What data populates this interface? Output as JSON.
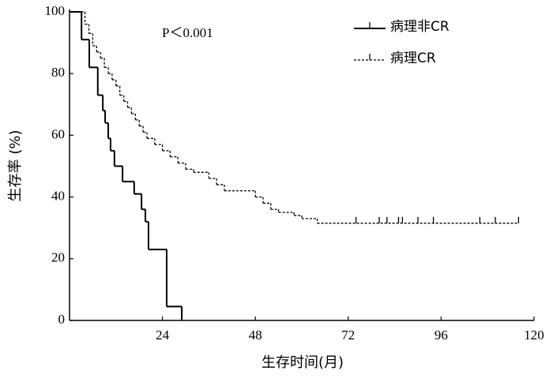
{
  "chart_data": {
    "type": "step",
    "xlabel": "生存时间(月)",
    "ylabel": "生存率 (%)",
    "annotation": "P＜0.001",
    "xlim": [
      0,
      120
    ],
    "xticks": [
      24,
      48,
      72,
      96,
      120
    ],
    "ylim": [
      0,
      100
    ],
    "yticks": [
      0,
      20,
      40,
      60,
      80,
      100
    ],
    "series": [
      {
        "name": "病理非CR",
        "color": "#000000",
        "dash": false,
        "x": [
          0,
          3.1,
          5.1,
          7.3,
          8.6,
          9.2,
          10,
          10.6,
          11.6,
          13.7,
          16.7,
          18.6,
          19.6,
          20.4,
          25.1,
          29
        ],
        "values": [
          100,
          91,
          82,
          73,
          68,
          64,
          59,
          55,
          50,
          45,
          41,
          36,
          32,
          23,
          4.5,
          0
        ],
        "censored": []
      },
      {
        "name": "病理CR",
        "color": "#000000",
        "dash": true,
        "x": [
          0,
          4,
          5,
          6,
          7,
          8,
          9,
          10,
          11,
          12,
          13,
          14,
          15,
          16,
          17,
          18,
          19,
          20,
          22,
          24,
          26,
          28,
          30,
          32,
          36,
          38,
          40,
          48,
          50,
          52,
          54,
          58,
          60,
          64,
          116
        ],
        "values": [
          100,
          96,
          93,
          89,
          87,
          85,
          82,
          80,
          78,
          76,
          73,
          71,
          69,
          67,
          65,
          63,
          61,
          59,
          57,
          55,
          53,
          51,
          49,
          48,
          46,
          44,
          42,
          40,
          38,
          36,
          35,
          34,
          33,
          31.5,
          31.5
        ],
        "censored": [
          74,
          80,
          82,
          85,
          86,
          90,
          94,
          106,
          110,
          116
        ]
      }
    ]
  }
}
